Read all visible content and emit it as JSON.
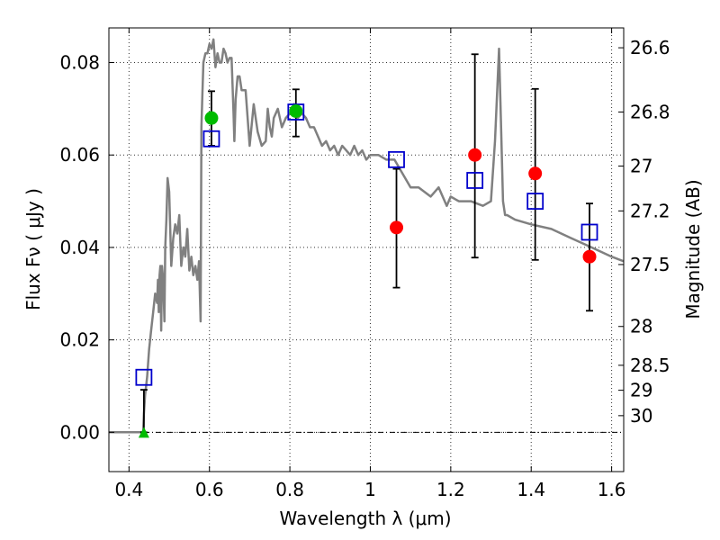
{
  "chart_data": {
    "type": "scatter",
    "title": "",
    "xlabel": "Wavelength  λ (μm)",
    "ylabel": "Flux  Fν  ( μJy )",
    "y2label": "Magnitude (AB)",
    "xlim": [
      0.35,
      1.63
    ],
    "ylim": [
      -0.0085,
      0.0875
    ],
    "grid": true,
    "x_ticks": [
      0.4,
      0.6,
      0.8,
      1.0,
      1.2,
      1.4,
      1.6
    ],
    "x_tick_labels": [
      "0.4",
      "0.6",
      "0.8",
      "1",
      "1.2",
      "1.4",
      "1.6"
    ],
    "y_ticks": [
      0.0,
      0.02,
      0.04,
      0.06,
      0.08
    ],
    "y_tick_labels": [
      "0.00",
      "0.02",
      "0.04",
      "0.06",
      "0.08"
    ],
    "y2_ticks": [
      {
        "label": "26.6",
        "flux": 0.0832
      },
      {
        "label": "26.8",
        "flux": 0.0693
      },
      {
        "label": "27",
        "flux": 0.0576
      },
      {
        "label": "27.2",
        "flux": 0.0479
      },
      {
        "label": "27.5",
        "flux": 0.0363
      },
      {
        "label": "28",
        "flux": 0.0229
      },
      {
        "label": "28.5",
        "flux": 0.0145
      },
      {
        "label": "29",
        "flux": 0.0091
      },
      {
        "label": "30",
        "flux": 0.0036
      }
    ],
    "series": [
      {
        "kind": "sed-model",
        "color": "#808080",
        "x": [
          0.35,
          0.43,
          0.435,
          0.437,
          0.44,
          0.445,
          0.45,
          0.455,
          0.46,
          0.465,
          0.47,
          0.472,
          0.474,
          0.476,
          0.478,
          0.48,
          0.482,
          0.484,
          0.486,
          0.488,
          0.49,
          0.493,
          0.496,
          0.5,
          0.505,
          0.51,
          0.515,
          0.52,
          0.525,
          0.53,
          0.535,
          0.54,
          0.545,
          0.55,
          0.555,
          0.56,
          0.565,
          0.57,
          0.574,
          0.578,
          0.58,
          0.582,
          0.585,
          0.59,
          0.595,
          0.6,
          0.605,
          0.61,
          0.615,
          0.62,
          0.625,
          0.63,
          0.635,
          0.64,
          0.645,
          0.65,
          0.655,
          0.66,
          0.662,
          0.665,
          0.67,
          0.675,
          0.68,
          0.69,
          0.7,
          0.71,
          0.72,
          0.73,
          0.74,
          0.745,
          0.75,
          0.755,
          0.76,
          0.77,
          0.78,
          0.79,
          0.8,
          0.81,
          0.82,
          0.83,
          0.84,
          0.85,
          0.86,
          0.87,
          0.88,
          0.89,
          0.9,
          0.91,
          0.92,
          0.93,
          0.94,
          0.95,
          0.96,
          0.97,
          0.98,
          0.99,
          1.0,
          1.02,
          1.04,
          1.06,
          1.08,
          1.1,
          1.12,
          1.15,
          1.17,
          1.19,
          1.2,
          1.22,
          1.25,
          1.28,
          1.3,
          1.31,
          1.32,
          1.33,
          1.335,
          1.34,
          1.36,
          1.4,
          1.45,
          1.5,
          1.55,
          1.6,
          1.63
        ],
        "y": [
          0.0,
          0.0,
          0.0,
          0.004,
          0.008,
          0.012,
          0.018,
          0.022,
          0.026,
          0.03,
          0.028,
          0.033,
          0.026,
          0.034,
          0.036,
          0.022,
          0.036,
          0.034,
          0.03,
          0.024,
          0.04,
          0.046,
          0.055,
          0.052,
          0.036,
          0.042,
          0.045,
          0.043,
          0.047,
          0.036,
          0.04,
          0.038,
          0.044,
          0.035,
          0.038,
          0.034,
          0.036,
          0.033,
          0.037,
          0.024,
          0.066,
          0.072,
          0.08,
          0.082,
          0.082,
          0.084,
          0.083,
          0.085,
          0.079,
          0.082,
          0.08,
          0.08,
          0.083,
          0.082,
          0.08,
          0.081,
          0.081,
          0.069,
          0.063,
          0.072,
          0.077,
          0.077,
          0.074,
          0.074,
          0.062,
          0.071,
          0.065,
          0.062,
          0.063,
          0.07,
          0.066,
          0.064,
          0.068,
          0.07,
          0.066,
          0.068,
          0.069,
          0.071,
          0.068,
          0.069,
          0.068,
          0.066,
          0.066,
          0.064,
          0.062,
          0.063,
          0.061,
          0.062,
          0.06,
          0.062,
          0.061,
          0.06,
          0.062,
          0.06,
          0.061,
          0.059,
          0.06,
          0.06,
          0.059,
          0.059,
          0.056,
          0.053,
          0.053,
          0.051,
          0.053,
          0.049,
          0.051,
          0.05,
          0.05,
          0.049,
          0.05,
          0.063,
          0.083,
          0.05,
          0.047,
          0.047,
          0.046,
          0.045,
          0.044,
          0.042,
          0.04,
          0.038,
          0.037
        ]
      },
      {
        "kind": "model-photometry",
        "marker": "open-square",
        "color": "#0000cc",
        "x": [
          0.437,
          0.605,
          0.815,
          1.065,
          1.26,
          1.41,
          1.545
        ],
        "y": [
          0.0119,
          0.0635,
          0.0693,
          0.059,
          0.0545,
          0.05,
          0.0433
        ]
      },
      {
        "kind": "observed",
        "marker": "filled-circle",
        "color": "#ff0000",
        "x": [
          1.065,
          1.26,
          1.41,
          1.545
        ],
        "y": [
          0.0443,
          0.06,
          0.056,
          0.038
        ],
        "yerr_low": [
          0.0313,
          0.0378,
          0.0373,
          0.0263
        ],
        "yerr_high": [
          0.057,
          0.0818,
          0.0743,
          0.0495
        ]
      },
      {
        "kind": "observed",
        "marker": "filled-circle",
        "color": "#00bb00",
        "x": [
          0.605,
          0.815
        ],
        "y": [
          0.068,
          0.0695
        ],
        "yerr_low": [
          0.062,
          0.064
        ],
        "yerr_high": [
          0.0738,
          0.0742
        ]
      },
      {
        "kind": "upper-limit",
        "marker": "filled-triangle",
        "color": "#00bb00",
        "x": [
          0.437
        ],
        "y": [
          0.0
        ],
        "yerr_low": [
          0.0
        ],
        "yerr_high": [
          0.0092
        ]
      }
    ]
  }
}
